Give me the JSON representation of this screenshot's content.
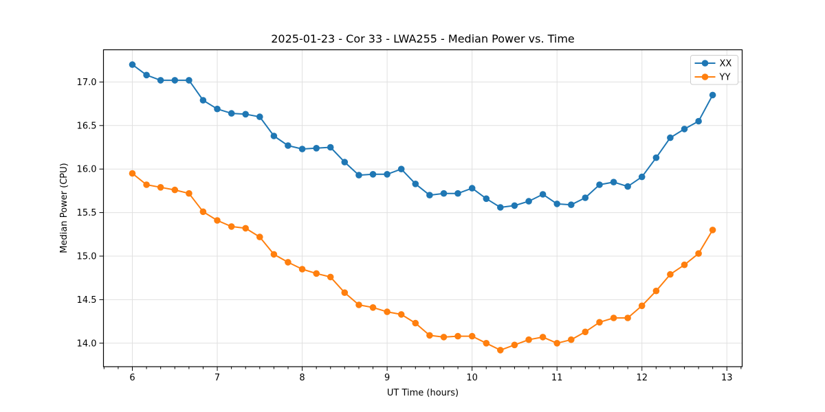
{
  "chart_data": {
    "type": "line",
    "title": "2025-01-23 - Cor 33 - LWA255 - Median Power vs. Time",
    "xlabel": "UT Time (hours)",
    "ylabel": "Median Power (CPU)",
    "xlim": [
      5.66,
      13.18
    ],
    "ylim": [
      13.73,
      17.37
    ],
    "xticks": [
      6,
      7,
      8,
      9,
      10,
      11,
      12,
      13
    ],
    "xtick_labels": [
      "6",
      "7",
      "8",
      "9",
      "10",
      "11",
      "12",
      "13"
    ],
    "yticks": [
      14.0,
      14.5,
      15.0,
      15.5,
      16.0,
      16.5,
      17.0
    ],
    "ytick_labels": [
      "14.0",
      "14.5",
      "15.0",
      "15.5",
      "16.0",
      "16.5",
      "17.0"
    ],
    "x_minor_tick_step": 0.16667,
    "grid": true,
    "legend_position": "upper right",
    "colors": {
      "grid": "#e0e0e0",
      "spine": "#000000",
      "legend_border": "#cccccc",
      "background": "#ffffff"
    },
    "x": [
      6.0,
      6.167,
      6.333,
      6.5,
      6.667,
      6.833,
      7.0,
      7.167,
      7.333,
      7.5,
      7.667,
      7.833,
      8.0,
      8.167,
      8.333,
      8.5,
      8.667,
      8.833,
      9.0,
      9.167,
      9.333,
      9.5,
      9.667,
      9.833,
      10.0,
      10.167,
      10.333,
      10.5,
      10.667,
      10.833,
      11.0,
      11.167,
      11.333,
      11.5,
      11.667,
      11.833,
      12.0,
      12.167,
      12.333,
      12.5,
      12.667,
      12.833
    ],
    "series": [
      {
        "name": "XX",
        "color": "#1f77b4",
        "values": [
          17.2,
          17.08,
          17.02,
          17.02,
          17.02,
          16.79,
          16.69,
          16.64,
          16.63,
          16.6,
          16.38,
          16.27,
          16.23,
          16.24,
          16.25,
          16.08,
          15.93,
          15.94,
          15.94,
          16.0,
          15.83,
          15.7,
          15.72,
          15.72,
          15.78,
          15.66,
          15.56,
          15.58,
          15.63,
          15.71,
          15.6,
          15.59,
          15.67,
          15.82,
          15.85,
          15.8,
          15.91,
          16.13,
          16.36,
          16.46,
          16.55,
          16.85
        ]
      },
      {
        "name": "YY",
        "color": "#ff7f0e",
        "values": [
          15.95,
          15.82,
          15.79,
          15.76,
          15.72,
          15.51,
          15.41,
          15.34,
          15.32,
          15.22,
          15.02,
          14.93,
          14.85,
          14.8,
          14.76,
          14.58,
          14.44,
          14.41,
          14.36,
          14.33,
          14.23,
          14.09,
          14.07,
          14.08,
          14.08,
          14.0,
          13.92,
          13.98,
          14.04,
          14.07,
          14.0,
          14.04,
          14.13,
          14.24,
          14.29,
          14.29,
          14.43,
          14.6,
          14.79,
          14.9,
          15.03,
          15.3
        ]
      }
    ]
  }
}
